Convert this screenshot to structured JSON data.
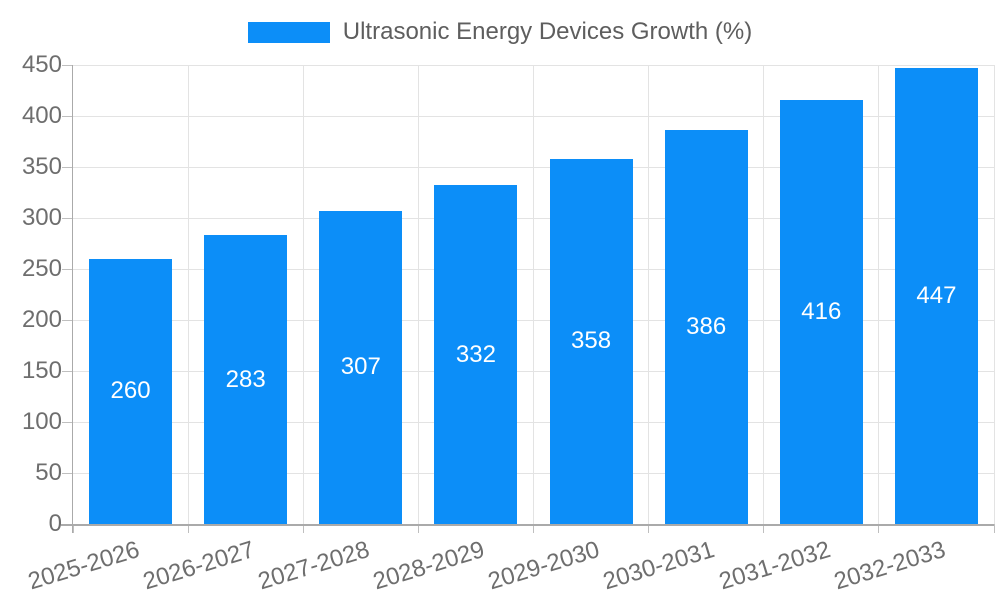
{
  "chart_data": {
    "type": "bar",
    "title": "Ultrasonic Energy Devices Growth (%)",
    "legend_entries": [
      "Ultrasonic Energy Devices Growth (%)"
    ],
    "legend_position": "top-center",
    "categories": [
      "2025-2026",
      "2026-2027",
      "2027-2028",
      "2028-2029",
      "2029-2030",
      "2030-2031",
      "2031-2032",
      "2032-2033"
    ],
    "values": [
      260,
      283,
      307,
      332,
      358,
      386,
      416,
      447
    ],
    "xlabel": "",
    "ylabel": "",
    "ylim": [
      0,
      450
    ],
    "yticks": [
      0,
      50,
      100,
      150,
      200,
      250,
      300,
      350,
      400,
      450
    ],
    "grid": true,
    "value_labels": "inside-center",
    "colors": {
      "bar": "#0c8ef8",
      "value_label": "#ffffff",
      "axis_text": "#6e6e6e",
      "legend_text": "#5e5e5e",
      "gridline": "#e3e3e3",
      "axis_line": "#aaaaaa",
      "tick_mark": "#bfbfbf"
    }
  }
}
